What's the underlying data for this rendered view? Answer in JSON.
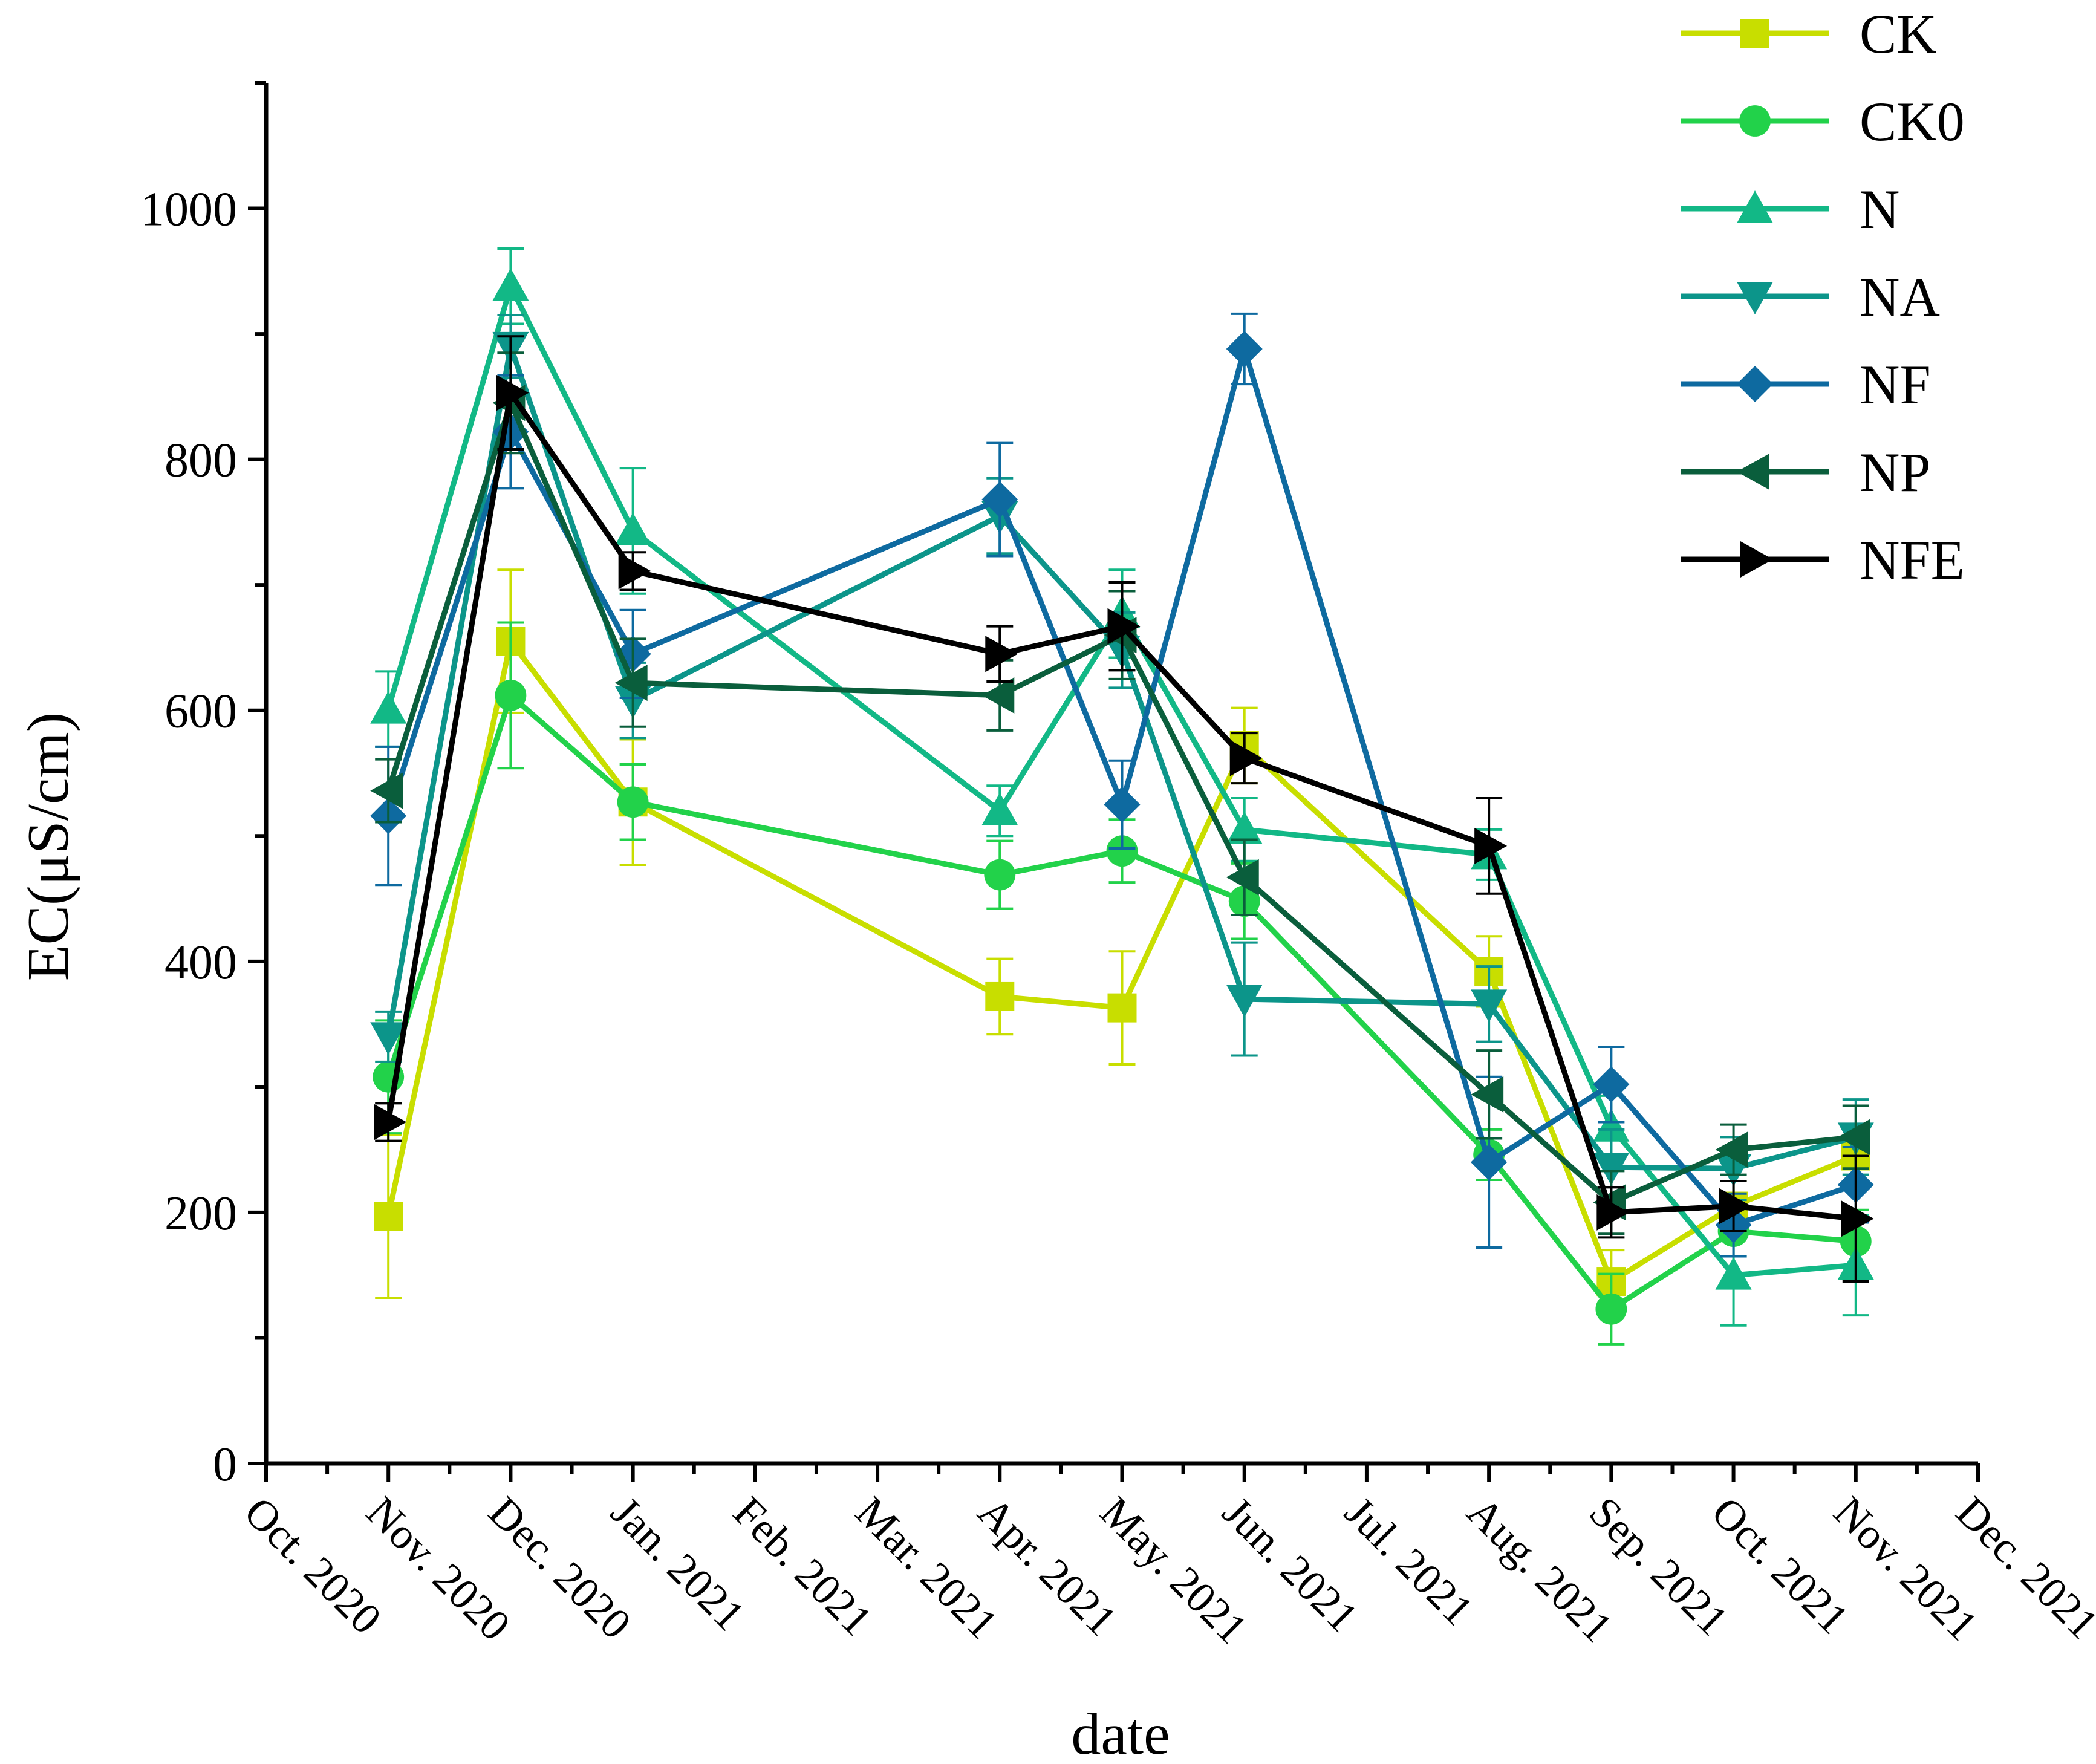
{
  "chart_data": {
    "type": "line",
    "title": "",
    "xlabel": "date",
    "ylabel": "EC(μS/cm)",
    "ylim": [
      0,
      1100
    ],
    "yticks": [
      0,
      200,
      400,
      600,
      800,
      1000
    ],
    "xtick_labels": [
      "Oct. 2020",
      "Nov. 2020",
      "Dec. 2020",
      "Jan. 2021",
      "Feb. 2021",
      "Mar. 2021",
      "Apr. 2021",
      "May. 2021",
      "Jun. 2021",
      "Jul. 2021",
      "Aug. 2021",
      "Sep. 2021",
      "Oct. 2021",
      "Nov. 2021",
      "Dec. 2021"
    ],
    "x_range": [
      0,
      14
    ],
    "legend_position": "top-right",
    "series": [
      {
        "name": "CK",
        "color": "#c8de00",
        "marker": "square",
        "x": [
          1,
          2,
          3,
          6,
          7,
          8,
          10,
          11,
          12,
          13
        ],
        "values": [
          197,
          655,
          527,
          372,
          363,
          572,
          392,
          145,
          205,
          245
        ],
        "errors": [
          65,
          57,
          50,
          30,
          45,
          30,
          28,
          25,
          20,
          25
        ]
      },
      {
        "name": "CK0",
        "color": "#22d24a",
        "marker": "circle",
        "x": [
          1,
          2,
          3,
          6,
          7,
          8,
          10,
          11,
          12,
          13
        ],
        "values": [
          308,
          612,
          527,
          469,
          488,
          448,
          246,
          123,
          185,
          177
        ],
        "errors": [
          45,
          58,
          30,
          27,
          25,
          30,
          20,
          28,
          20,
          25
        ]
      },
      {
        "name": "N",
        "color": "#12b886",
        "marker": "triangle-up",
        "x": [
          1,
          2,
          3,
          6,
          7,
          8,
          10,
          11,
          12,
          13
        ],
        "values": [
          601,
          938,
          743,
          520,
          677,
          505,
          485,
          268,
          150,
          158
        ],
        "errors": [
          30,
          30,
          50,
          20,
          35,
          25,
          20,
          25,
          40,
          40
        ]
      },
      {
        "name": "NA",
        "color": "#0c958a",
        "marker": "triangle-down",
        "x": [
          1,
          2,
          3,
          6,
          7,
          8,
          10,
          11,
          12,
          13
        ],
        "values": [
          340,
          890,
          608,
          755,
          648,
          370,
          366,
          236,
          235,
          260
        ],
        "errors": [
          20,
          25,
          30,
          30,
          30,
          45,
          30,
          30,
          25,
          30
        ]
      },
      {
        "name": "NF",
        "color": "#0e6aa0",
        "marker": "diamond",
        "x": [
          1,
          2,
          3,
          6,
          7,
          8,
          10,
          11,
          12,
          13
        ],
        "values": [
          516,
          822,
          645,
          768,
          525,
          888,
          240,
          302,
          190,
          222
        ],
        "errors": [
          55,
          45,
          35,
          45,
          35,
          28,
          68,
          30,
          25,
          30
        ]
      },
      {
        "name": "NP",
        "color": "#0a5e3c",
        "marker": "triangle-left",
        "x": [
          1,
          2,
          3,
          6,
          7,
          8,
          10,
          11,
          12,
          13
        ],
        "values": [
          536,
          845,
          622,
          612,
          660,
          467,
          294,
          208,
          250,
          260
        ],
        "errors": [
          25,
          40,
          35,
          28,
          35,
          30,
          35,
          25,
          20,
          25
        ]
      },
      {
        "name": "NFE",
        "color": "#000000",
        "marker": "triangle-right",
        "x": [
          1,
          2,
          3,
          6,
          7,
          8,
          10,
          11,
          12,
          13
        ],
        "values": [
          272,
          853,
          711,
          645,
          667,
          562,
          492,
          200,
          205,
          195
        ],
        "errors": [
          15,
          45,
          15,
          22,
          35,
          20,
          38,
          20,
          20,
          50
        ]
      }
    ]
  }
}
